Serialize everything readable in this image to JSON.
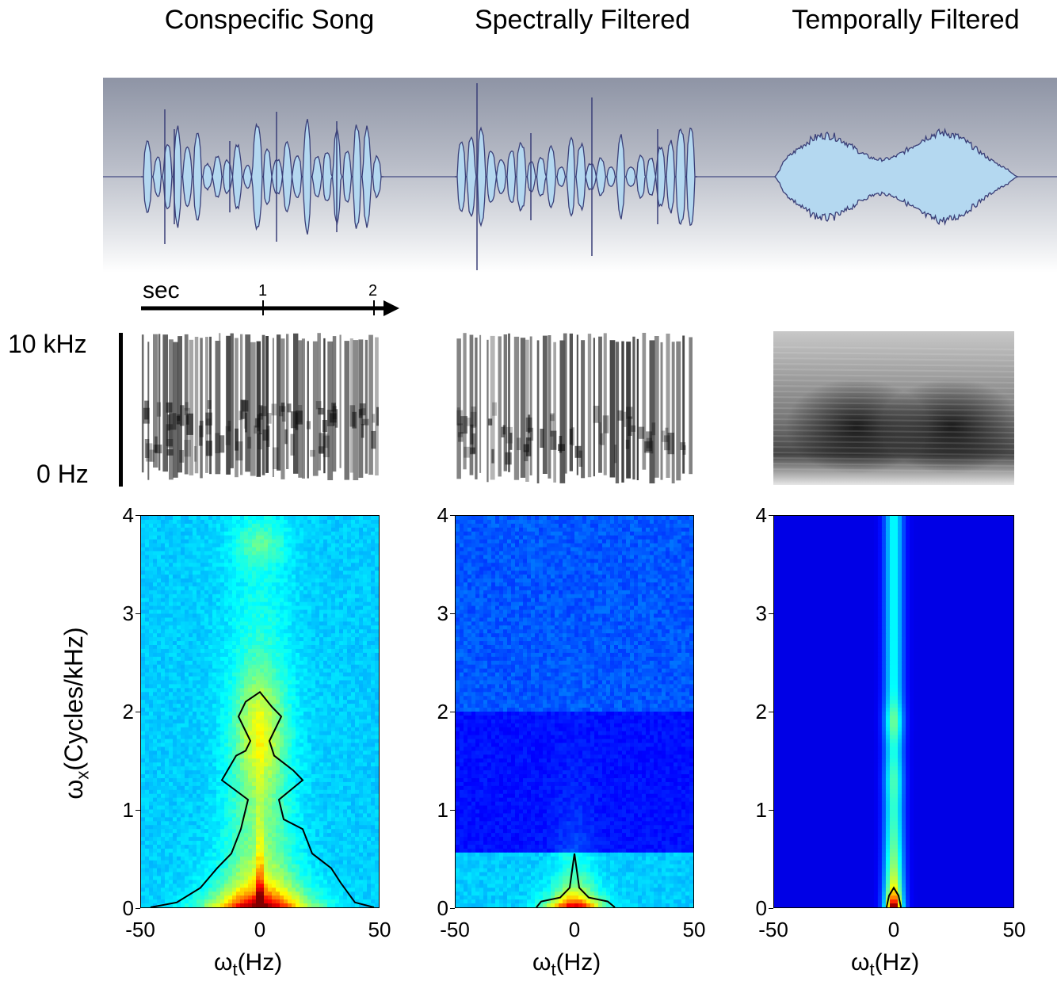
{
  "titles": [
    "Conspecific Song",
    "Spectrally Filtered",
    "Temporally Filtered"
  ],
  "time_axis": {
    "label": "sec",
    "ticks": [
      "1",
      "2"
    ]
  },
  "frequency_axis": {
    "top_label": "10 kHz",
    "bottom_label": "0 Hz"
  },
  "chart_data": [
    {
      "type": "heatmap",
      "title": "Conspecific Song",
      "x_ticks": [
        "-50",
        "0",
        "50"
      ],
      "y_ticks": [
        "0",
        "1",
        "2",
        "3",
        "4"
      ],
      "xlim": [
        -50,
        50
      ],
      "ylim": [
        0,
        4
      ],
      "xlabel_main": "ω",
      "xlabel_sub": "t",
      "xlabel_rest": "(Hz)",
      "ylabel_main": "ω",
      "ylabel_sub": "x",
      "ylabel_rest": "(Cycles/kHz)"
    },
    {
      "type": "heatmap",
      "title": "Spectrally Filtered",
      "x_ticks": [
        "-50",
        "0",
        "50"
      ],
      "y_ticks": [
        "0",
        "1",
        "2",
        "3",
        "4"
      ],
      "xlim": [
        -50,
        50
      ],
      "ylim": [
        0,
        4
      ],
      "xlabel_main": "ω",
      "xlabel_sub": "t",
      "xlabel_rest": "(Hz)"
    },
    {
      "type": "heatmap",
      "title": "Temporally Filtered",
      "x_ticks": [
        "-50",
        "0",
        "50"
      ],
      "y_ticks": [
        "0",
        "1",
        "2",
        "3",
        "4"
      ],
      "xlim": [
        -50,
        50
      ],
      "ylim": [
        0,
        4
      ],
      "xlabel_main": "ω",
      "xlabel_sub": "t",
      "xlabel_rest": "(Hz)"
    }
  ],
  "colors": {
    "wave_fill": "#b4d8f0",
    "wave_stroke": "#3a3f78",
    "heat_dark": "#00107a",
    "contour": "#000000"
  }
}
